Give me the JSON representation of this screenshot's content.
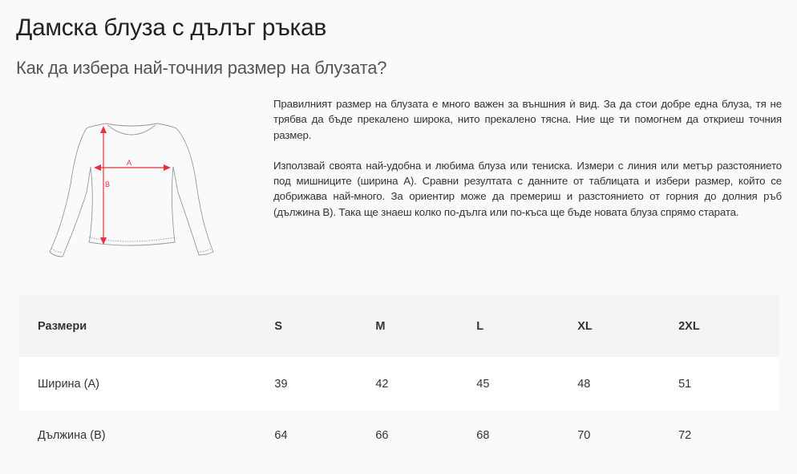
{
  "title": "Дамска блуза с дълъг ръкав",
  "subtitle": "Как да избера най-точния размер на блузата?",
  "diagram": {
    "label_a": "A",
    "label_b": "B",
    "arrow_color": "#e8323c"
  },
  "paragraphs": [
    "Правилният размер на блузата е много важен за външния ѝ вид. За да стои добре една блуза, тя не трябва да бъде прекалено широка, нито прекалено тясна. Ние ще ти помогнем да откриеш точния размер.",
    "Използвай своята най-удобна и любима блуза или тениска. Измери с линия или метър разстоянието под мишниците (ширина А). Сравни резултата с данните от таблицата и избери размер, който се добрижава най-много. За ориентир може да премериш и разстоянието от горния до долния ръб (дължина В). Така ще знаеш колко по-дълга или по-къса ще бъде новата блуза спрямо старата."
  ],
  "table": {
    "headers": [
      "Размери",
      "S",
      "M",
      "L",
      "XL",
      "2XL"
    ],
    "rows": [
      [
        "Ширина (А)",
        "39",
        "42",
        "45",
        "48",
        "51"
      ],
      [
        "Дължина (В)",
        "64",
        "66",
        "68",
        "70",
        "72"
      ]
    ]
  }
}
